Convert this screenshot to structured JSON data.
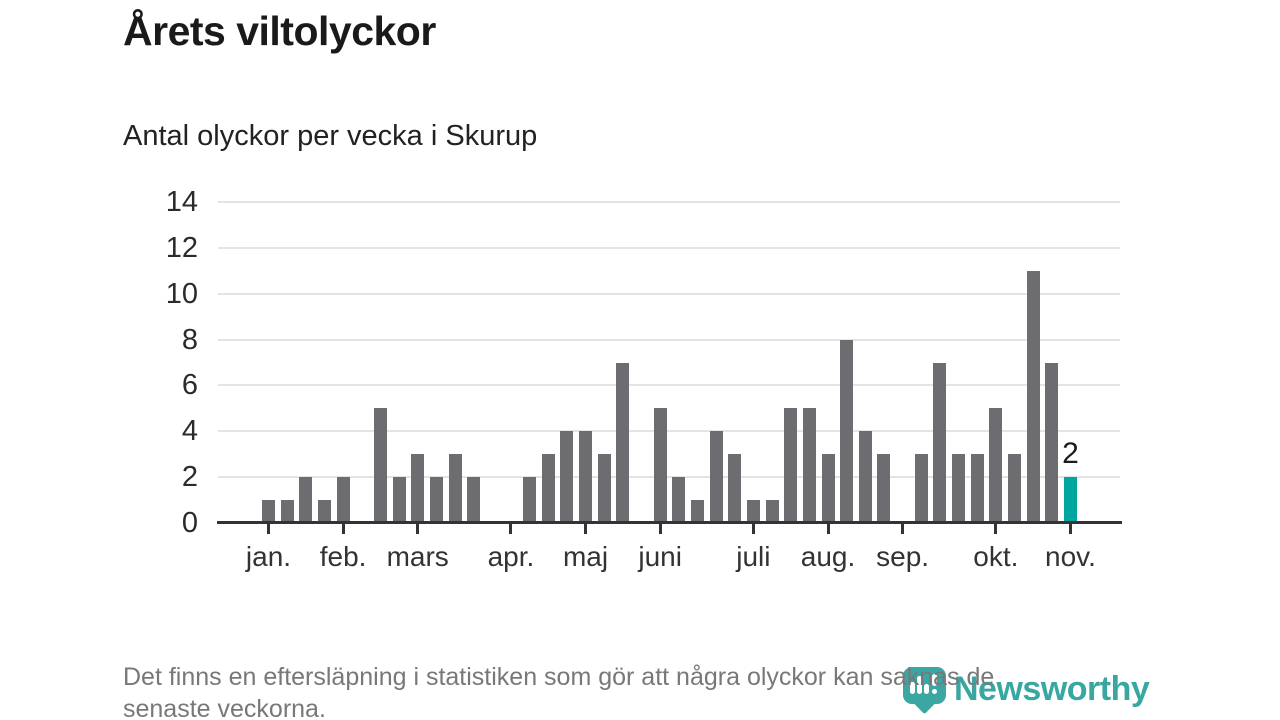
{
  "header": {
    "title": "Årets viltolyckor",
    "subtitle": "Antal olyckor per vecka i Skurup"
  },
  "footer": {
    "note_lines": [
      "Det finns en eftersläpning i statistiken som gör att några olyckor kan saknas de",
      "senaste veckorna."
    ],
    "brand": {
      "name": "Newsworthy",
      "icon": "newsworthy-bubble-chart-icon"
    }
  },
  "colors": {
    "bar": "#6d6d71",
    "highlight": "#00a59e",
    "axis": "#333333",
    "grid": "#e4e4e4",
    "brand": "#38a7a2",
    "footnote_text": "#787878"
  },
  "chart_data": {
    "type": "bar",
    "title": "Årets viltolyckor",
    "subtitle": "Antal olyckor per vecka i Skurup",
    "x_unit": "vecka",
    "ylabel": "",
    "xlabel": "",
    "ylim": [
      0,
      14
    ],
    "yticks": [
      0,
      2,
      4,
      6,
      8,
      10,
      12,
      14
    ],
    "grid": true,
    "legend_position": "none",
    "values": [
      1,
      1,
      2,
      1,
      2,
      0,
      5,
      2,
      3,
      2,
      3,
      2,
      0,
      0,
      2,
      3,
      4,
      4,
      3,
      7,
      0,
      5,
      2,
      1,
      4,
      3,
      1,
      1,
      5,
      5,
      3,
      8,
      4,
      3,
      0,
      3,
      7,
      3,
      3,
      5,
      3,
      11,
      7,
      2
    ],
    "month_ticks": [
      {
        "label": "jan.",
        "week": 1
      },
      {
        "label": "feb.",
        "week": 5
      },
      {
        "label": "mars",
        "week": 9
      },
      {
        "label": "apr.",
        "week": 14
      },
      {
        "label": "maj",
        "week": 18
      },
      {
        "label": "juni",
        "week": 22
      },
      {
        "label": "juli",
        "week": 27
      },
      {
        "label": "aug.",
        "week": 31
      },
      {
        "label": "sep.",
        "week": 35
      },
      {
        "label": "okt.",
        "week": 40
      },
      {
        "label": "nov.",
        "week": 44
      }
    ],
    "highlight_last_bar": true,
    "last_bar_label": "2"
  }
}
